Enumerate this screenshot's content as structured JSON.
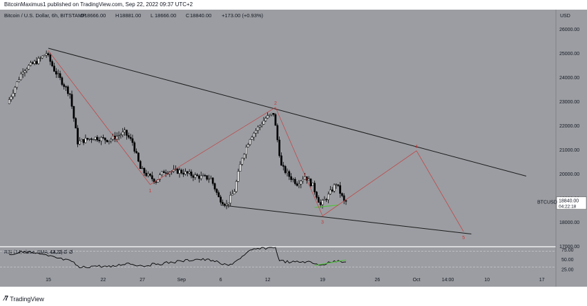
{
  "header": {
    "publisher": "BitcoinMaximus1 published on TradingView.com, Sep 22, 2022 09:37 UTC+2"
  },
  "footer": {
    "brand": "TradingView"
  },
  "colors": {
    "background": "#9b9da2",
    "axis_panel": "#9b9da2",
    "candle": "#000000",
    "trendline": "#1a1a1a",
    "wave": "#c83a3a",
    "divergence": "#55c043",
    "rsi_line": "#000000",
    "price_box": "#ffffff"
  },
  "chart_data": [
    {
      "type": "candlestick",
      "title": "Bitcoin / U.S. Dollar, 6h, BITSTAMP",
      "ohlc": {
        "o_label": "O",
        "o": "18666.00",
        "h_label": "H",
        "h": "18881.00",
        "l_label": "L",
        "l": "18666.00",
        "c_label": "C",
        "c": "18840.00",
        "change": "+173.00 (+0.93%)"
      },
      "currency": "USD",
      "symbol": "BTCUSD",
      "last_price": "18840.00",
      "countdown": "04:22:18",
      "ylim": [
        17000,
        26800
      ],
      "y_ticks": [
        "26000.00",
        "25000.00",
        "24000.00",
        "23000.00",
        "22000.00",
        "21000.00",
        "20000.00",
        "19000.00",
        "18000.00",
        "17000.00"
      ],
      "y_tick_values": [
        26000,
        25000,
        24000,
        23000,
        22000,
        21000,
        20000,
        19000,
        18000,
        17000
      ],
      "x_ticks": [
        "15",
        "22",
        "27",
        "Sep",
        "6",
        "12",
        "19",
        "26",
        "Oct",
        "14:00",
        "10",
        "17"
      ],
      "x_tick_dates": [
        "2022-08-15",
        "2022-08-22",
        "2022-08-27",
        "2022-09-01",
        "2022-09-06",
        "2022-09-12",
        "2022-09-19",
        "2022-09-26",
        "2022-10-01",
        "2022-10-05",
        "2022-10-10",
        "2022-10-17"
      ],
      "price_path": [
        [
          "2022-08-10",
          22900
        ],
        [
          "2022-08-12",
          24300
        ],
        [
          "2022-08-14",
          24700
        ],
        [
          "2022-08-15",
          25000
        ],
        [
          "2022-08-16",
          24300
        ],
        [
          "2022-08-17",
          23800
        ],
        [
          "2022-08-18",
          23300
        ],
        [
          "2022-08-19",
          21300
        ],
        [
          "2022-08-21",
          21500
        ],
        [
          "2022-08-23",
          21400
        ],
        [
          "2022-08-25",
          21700
        ],
        [
          "2022-08-26",
          21300
        ],
        [
          "2022-08-27",
          20200
        ],
        [
          "2022-08-28",
          19900
        ],
        [
          "2022-08-29",
          19700
        ],
        [
          "2022-08-30",
          20100
        ],
        [
          "2022-09-01",
          20100
        ],
        [
          "2022-09-03",
          19900
        ],
        [
          "2022-09-05",
          19800
        ],
        [
          "2022-09-06",
          19000
        ],
        [
          "2022-09-07",
          18700
        ],
        [
          "2022-09-08",
          19300
        ],
        [
          "2022-09-09",
          20700
        ],
        [
          "2022-09-10",
          21500
        ],
        [
          "2022-09-12",
          22300
        ],
        [
          "2022-09-13",
          22500
        ],
        [
          "2022-09-14",
          20300
        ],
        [
          "2022-09-15",
          19900
        ],
        [
          "2022-09-16",
          19600
        ],
        [
          "2022-09-17",
          19900
        ],
        [
          "2022-09-18",
          19500
        ],
        [
          "2022-09-19",
          18700
        ],
        [
          "2022-09-20",
          19100
        ],
        [
          "2022-09-21",
          19600
        ],
        [
          "2022-09-22",
          18840
        ]
      ],
      "trendlines": [
        {
          "name": "resistance",
          "from": [
            "2022-08-15",
            25200
          ],
          "to": [
            "2022-10-15",
            19900
          ]
        },
        {
          "name": "support",
          "from": [
            "2022-09-06",
            18700
          ],
          "to": [
            "2022-10-08",
            17500
          ]
        }
      ],
      "divergence_price": {
        "from": [
          "2022-09-18",
          18600
        ],
        "to": [
          "2022-09-21",
          18700
        ]
      },
      "wave_count": [
        {
          "label": "",
          "date": "2022-08-15",
          "price": 25100
        },
        {
          "label": "1",
          "date": "2022-08-28",
          "price": 19550
        },
        {
          "label": "2",
          "date": "2022-09-13",
          "price": 22750
        },
        {
          "label": "3",
          "date": "2022-09-19",
          "price": 18250
        },
        {
          "label": "4",
          "date": "2022-10-01",
          "price": 20950
        },
        {
          "label": "5",
          "date": "2022-10-07",
          "price": 17600
        }
      ]
    },
    {
      "type": "line",
      "title": "RSI (14, close, SMA, 14, 2)",
      "value_label": "43.25",
      "extra_labels": [
        "Ø",
        "Ø"
      ],
      "ylim": [
        15,
        80
      ],
      "y_ticks": [
        "75.00",
        "50.00",
        "25.00"
      ],
      "y_tick_values": [
        75,
        50,
        25
      ],
      "levels": [
        70,
        30
      ],
      "rsi_path": [
        [
          "2022-08-10",
          62
        ],
        [
          "2022-08-12",
          70
        ],
        [
          "2022-08-15",
          58
        ],
        [
          "2022-08-18",
          44
        ],
        [
          "2022-08-19",
          28
        ],
        [
          "2022-08-21",
          33
        ],
        [
          "2022-08-23",
          30
        ],
        [
          "2022-08-25",
          40
        ],
        [
          "2022-08-27",
          33
        ],
        [
          "2022-08-29",
          38
        ],
        [
          "2022-09-01",
          45
        ],
        [
          "2022-09-03",
          50
        ],
        [
          "2022-09-05",
          47
        ],
        [
          "2022-09-06",
          38
        ],
        [
          "2022-09-07",
          34
        ],
        [
          "2022-09-08",
          46
        ],
        [
          "2022-09-09",
          60
        ],
        [
          "2022-09-10",
          74
        ],
        [
          "2022-09-12",
          79
        ],
        [
          "2022-09-13",
          80
        ],
        [
          "2022-09-13.5",
          46
        ],
        [
          "2022-09-15",
          42
        ],
        [
          "2022-09-17",
          44
        ],
        [
          "2022-09-18",
          38
        ],
        [
          "2022-09-19",
          36
        ],
        [
          "2022-09-20",
          42
        ],
        [
          "2022-09-21",
          47
        ],
        [
          "2022-09-22",
          43
        ]
      ],
      "divergence_rsi": {
        "from": [
          "2022-09-18",
          34
        ],
        "to": [
          "2022-09-22",
          48
        ]
      }
    }
  ]
}
